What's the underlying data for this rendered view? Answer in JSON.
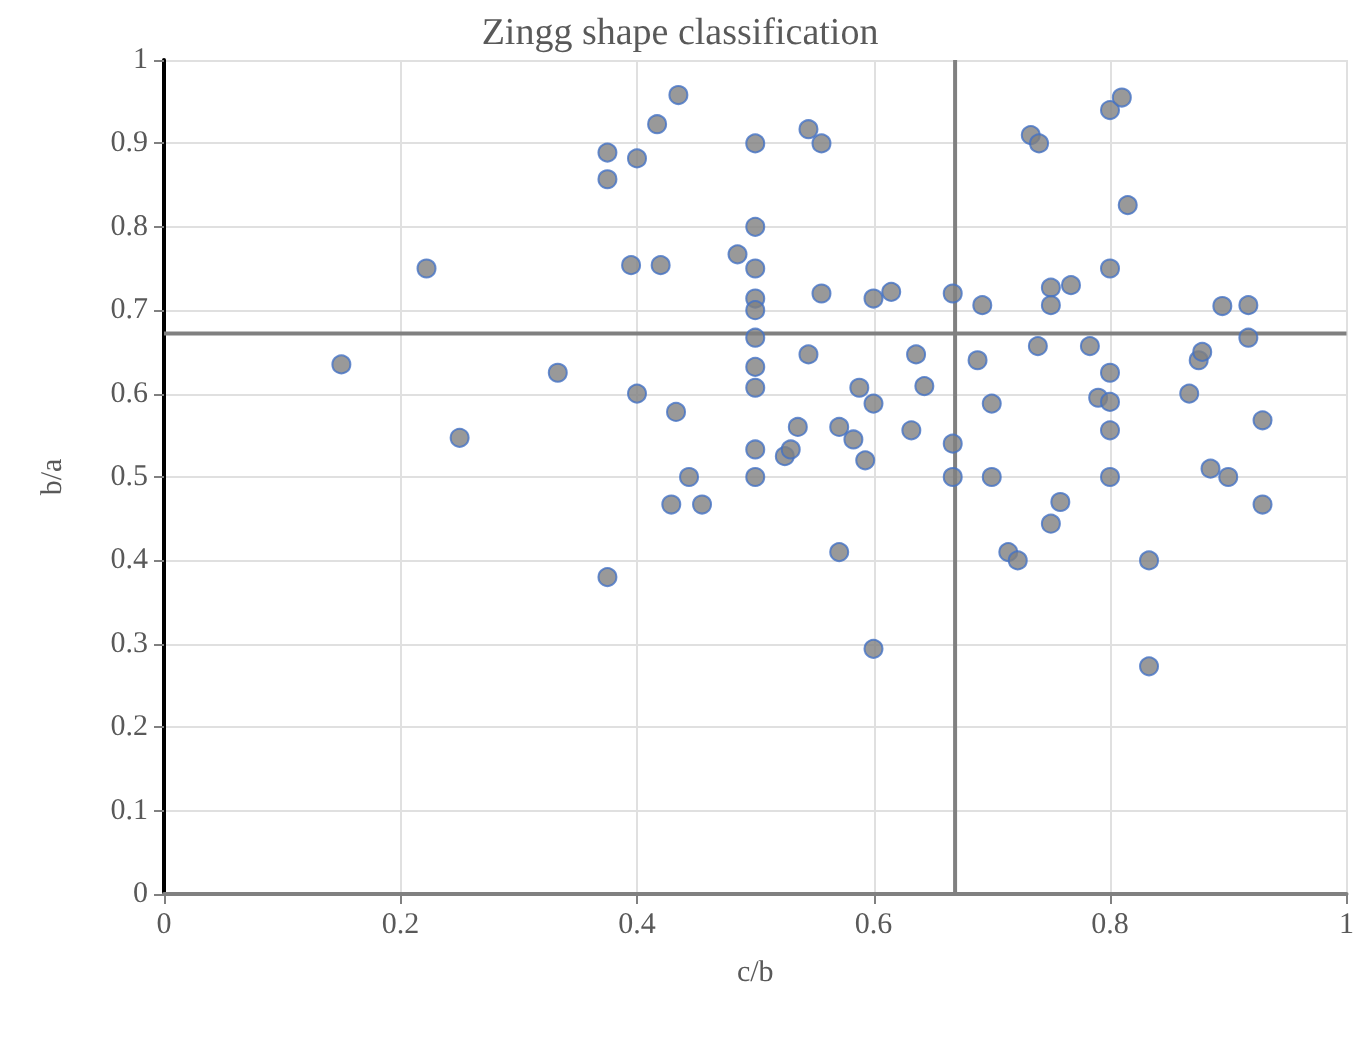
{
  "chart_data": {
    "type": "scatter",
    "title": "Zingg shape classification",
    "xlabel": "c/b",
    "ylabel": "b/a",
    "x": [
      0.15,
      0.222,
      0.25,
      0.333,
      0.375,
      0.375,
      0.375,
      0.4,
      0.395,
      0.4,
      0.417,
      0.42,
      0.433,
      0.429,
      0.435,
      0.444,
      0.455,
      0.485,
      0.5,
      0.5,
      0.5,
      0.5,
      0.5,
      0.5,
      0.5,
      0.5,
      0.5,
      0.5,
      0.525,
      0.53,
      0.536,
      0.545,
      0.545,
      0.556,
      0.556,
      0.571,
      0.571,
      0.583,
      0.588,
      0.593,
      0.6,
      0.6,
      0.6,
      0.615,
      0.632,
      0.636,
      0.643,
      0.667,
      0.667,
      0.667,
      0.688,
      0.692,
      0.7,
      0.7,
      0.714,
      0.722,
      0.733,
      0.74,
      0.739,
      0.75,
      0.75,
      0.75,
      0.758,
      0.767,
      0.783,
      0.79,
      0.8,
      0.81,
      0.8,
      0.8,
      0.8,
      0.8,
      0.8,
      0.815,
      0.833,
      0.833,
      0.867,
      0.875,
      0.878,
      0.885,
      0.895,
      0.9,
      0.917,
      0.917,
      0.929,
      0.929
    ],
    "values": [
      0.635,
      0.75,
      0.547,
      0.625,
      0.889,
      0.857,
      0.38,
      0.882,
      0.754,
      0.6,
      0.923,
      0.754,
      0.578,
      0.467,
      0.958,
      0.5,
      0.467,
      0.767,
      0.9,
      0.8,
      0.75,
      0.714,
      0.7,
      0.667,
      0.632,
      0.607,
      0.533,
      0.5,
      0.525,
      0.533,
      0.56,
      0.917,
      0.647,
      0.9,
      0.72,
      0.41,
      0.56,
      0.545,
      0.607,
      0.52,
      0.714,
      0.588,
      0.294,
      0.722,
      0.556,
      0.647,
      0.609,
      0.72,
      0.54,
      0.5,
      0.64,
      0.706,
      0.588,
      0.5,
      0.41,
      0.4,
      0.91,
      0.9,
      0.657,
      0.727,
      0.706,
      0.444,
      0.47,
      0.73,
      0.657,
      0.595,
      0.94,
      0.955,
      0.75,
      0.625,
      0.59,
      0.556,
      0.5,
      0.826,
      0.4,
      0.273,
      0.6,
      0.64,
      0.65,
      0.51,
      0.705,
      0.5,
      0.706,
      0.667,
      0.568,
      0.467
    ],
    "color": "#7f7f7f",
    "marker": "circle",
    "xlim": [
      0,
      1
    ],
    "xticks": [
      0,
      0.2,
      0.4,
      0.6,
      0.8,
      1
    ],
    "ylim": [
      0,
      1
    ],
    "yticks": [
      0,
      0.1,
      0.2,
      0.3,
      0.4,
      0.5,
      0.6,
      0.7,
      0.8,
      0.9,
      1
    ],
    "grid": true,
    "ref_lines": [
      {
        "axis": "x",
        "value": 0.669,
        "color": "#808080"
      },
      {
        "axis": "y",
        "value": 0.672,
        "color": "#808080"
      }
    ]
  }
}
